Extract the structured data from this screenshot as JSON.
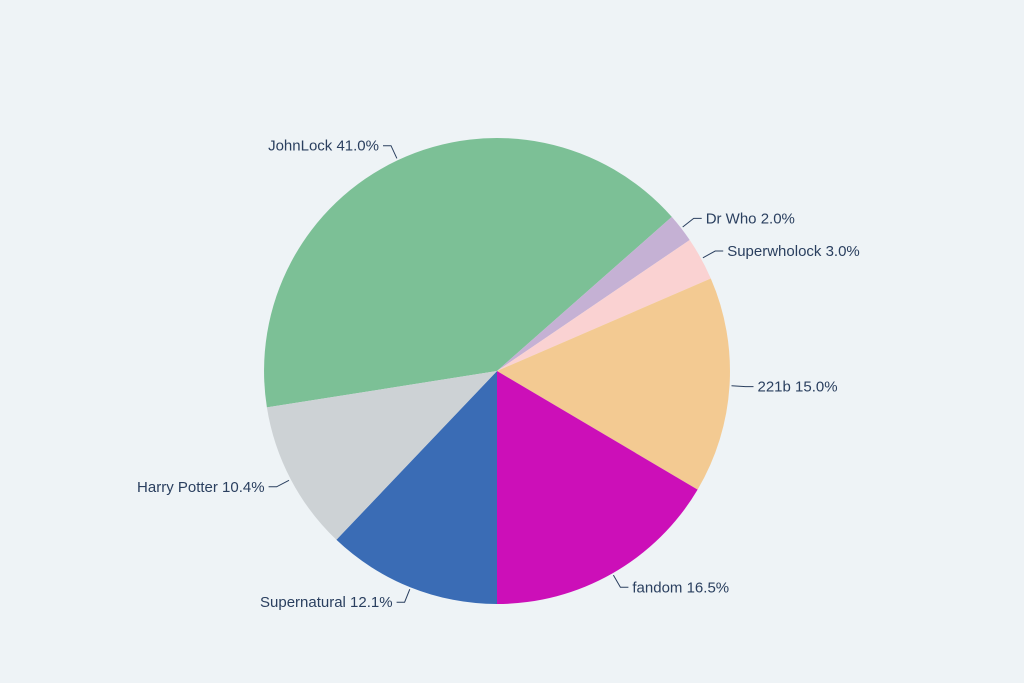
{
  "page": {
    "background_color": "#eef3f6"
  },
  "chart_data": {
    "type": "pie",
    "title": "",
    "legend": "none",
    "labels_position": "outside",
    "direction": "clockwise",
    "start_angle_deg": 261,
    "text_color": "#2a3f5f",
    "categories": [
      "JohnLock",
      "Dr Who",
      "Superwholock",
      "221b",
      "fandom",
      "Supernatural",
      "Harry Potter"
    ],
    "values": [
      41.0,
      2.0,
      3.0,
      15.0,
      16.5,
      12.1,
      10.4
    ],
    "slices": [
      {
        "label": "JohnLock",
        "value": 41.0,
        "display": "JohnLock 41.0%",
        "color": "#7cc096"
      },
      {
        "label": "Dr Who",
        "value": 2.0,
        "display": "Dr Who 2.0%",
        "color": "#c5b1d4"
      },
      {
        "label": "Superwholock",
        "value": 3.0,
        "display": "Superwholock 3.0%",
        "color": "#fad2d2"
      },
      {
        "label": "221b",
        "value": 15.0,
        "display": "221b 15.0%",
        "color": "#f3ca92"
      },
      {
        "label": "fandom",
        "value": 16.5,
        "display": "fandom 16.5%",
        "color": "#cc0fb8"
      },
      {
        "label": "Supernatural",
        "value": 12.1,
        "display": "Supernatural 12.1%",
        "color": "#3a6cb5"
      },
      {
        "label": "Harry Potter",
        "value": 10.4,
        "display": "Harry Potter 10.4%",
        "color": "#cdd2d5"
      }
    ]
  }
}
